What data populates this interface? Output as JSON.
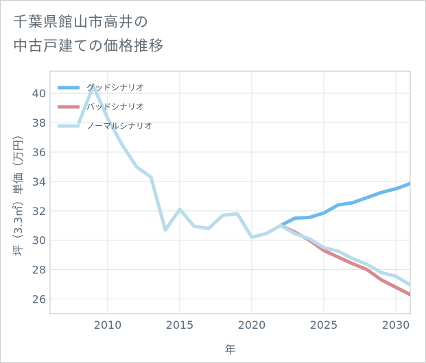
{
  "chart_data": {
    "type": "line",
    "title_lines": [
      "千葉県館山市高井の",
      "中古戸建ての価格推移"
    ],
    "xlabel": "年",
    "ylabel": "坪（3.3㎡）単価（万円）",
    "xlim": [
      2006,
      2031
    ],
    "ylim": [
      25,
      41.5
    ],
    "x_ticks": [
      2010,
      2015,
      2020,
      2025,
      2030
    ],
    "y_ticks": [
      26,
      28,
      30,
      32,
      34,
      36,
      38,
      40
    ],
    "grid": true,
    "legend_position": "top-left",
    "series": [
      {
        "name": "グッドシナリオ",
        "color": "#6cb9ec",
        "x": [
          2022,
          2023,
          2024,
          2025,
          2026,
          2027,
          2028,
          2029,
          2030,
          2031
        ],
        "values": [
          31.0,
          31.5,
          31.55,
          31.85,
          32.4,
          32.55,
          32.9,
          33.25,
          33.5,
          33.85
        ]
      },
      {
        "name": "バッドシナリオ",
        "color": "#d98a90",
        "x": [
          2022,
          2023,
          2024,
          2025,
          2026,
          2027,
          2028,
          2029,
          2030,
          2031
        ],
        "values": [
          31.0,
          30.55,
          30.0,
          29.3,
          28.85,
          28.4,
          28.0,
          27.3,
          26.8,
          26.3
        ]
      },
      {
        "name": "ノーマルシナリオ",
        "color": "#b8dcea",
        "x": [
          2008,
          2009,
          2010,
          2011,
          2012,
          2013,
          2014,
          2015,
          2016,
          2017,
          2018,
          2019,
          2020,
          2021,
          2022,
          2023,
          2024,
          2025,
          2026,
          2027,
          2028,
          2029,
          2030,
          2031
        ],
        "values": [
          38.0,
          40.5,
          38.3,
          36.5,
          35.0,
          34.3,
          30.7,
          32.1,
          30.95,
          30.8,
          31.7,
          31.8,
          30.2,
          30.45,
          31.0,
          30.45,
          30.1,
          29.5,
          29.25,
          28.75,
          28.35,
          27.8,
          27.55,
          26.95
        ]
      }
    ]
  }
}
